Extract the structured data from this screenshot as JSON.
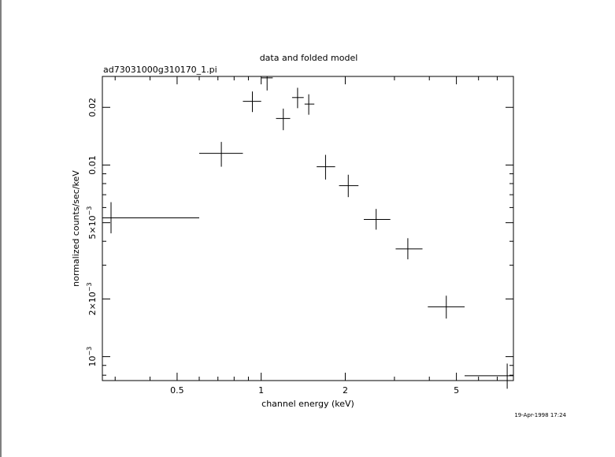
{
  "chart_data": {
    "type": "scatter",
    "title": "data and folded model",
    "subtitle": "ad73031000g310170_1.pi",
    "xlabel": "channel energy (keV)",
    "ylabel": "normalized counts/sec/keV",
    "x_scale": "log",
    "y_scale": "log",
    "xlim": [
      0.27,
      8.0
    ],
    "ylim": [
      0.00075,
      0.029
    ],
    "grid": false,
    "legend": "none",
    "timestamp": "19-Apr-1998 17:24",
    "x_ticks": [
      {
        "value": 0.5,
        "label": "0.5"
      },
      {
        "value": 1,
        "label": "1"
      },
      {
        "value": 2,
        "label": "2"
      },
      {
        "value": 5,
        "label": "5"
      }
    ],
    "y_ticks": [
      {
        "value": 0.001,
        "label_base": "10",
        "label_sup": "−3"
      },
      {
        "value": 0.002,
        "label_base": "2×10",
        "label_sup": "−3"
      },
      {
        "value": 0.005,
        "label_base": "5×10",
        "label_sup": "−3"
      },
      {
        "value": 0.01,
        "label_base": "0.01",
        "label_sup": ""
      },
      {
        "value": 0.02,
        "label_base": "0.02",
        "label_sup": ""
      }
    ],
    "series": [
      {
        "points": [
          {
            "x": 0.29,
            "xlo": 0.27,
            "xhi": 0.6,
            "y": 0.0053,
            "ylo": 0.0044,
            "yhi": 0.0064
          },
          {
            "x": 0.72,
            "xlo": 0.6,
            "xhi": 0.86,
            "y": 0.0115,
            "ylo": 0.0098,
            "yhi": 0.0132
          },
          {
            "x": 0.93,
            "xlo": 0.86,
            "xhi": 1.0,
            "y": 0.0215,
            "ylo": 0.0189,
            "yhi": 0.0242
          },
          {
            "x": 1.05,
            "xlo": 1.0,
            "xhi": 1.1,
            "y": 0.0285,
            "ylo": 0.0245,
            "yhi": 0.029
          },
          {
            "x": 1.2,
            "xlo": 1.13,
            "xhi": 1.27,
            "y": 0.0175,
            "ylo": 0.0152,
            "yhi": 0.0197
          },
          {
            "x": 1.35,
            "xlo": 1.29,
            "xhi": 1.42,
            "y": 0.0225,
            "ylo": 0.0198,
            "yhi": 0.0253
          },
          {
            "x": 1.48,
            "xlo": 1.43,
            "xhi": 1.55,
            "y": 0.0208,
            "ylo": 0.0183,
            "yhi": 0.0234
          },
          {
            "x": 1.7,
            "xlo": 1.58,
            "xhi": 1.84,
            "y": 0.0098,
            "ylo": 0.0084,
            "yhi": 0.0113
          },
          {
            "x": 2.05,
            "xlo": 1.9,
            "xhi": 2.23,
            "y": 0.0078,
            "ylo": 0.0068,
            "yhi": 0.0089
          },
          {
            "x": 2.58,
            "xlo": 2.33,
            "xhi": 2.9,
            "y": 0.0052,
            "ylo": 0.0046,
            "yhi": 0.0059
          },
          {
            "x": 3.35,
            "xlo": 3.03,
            "xhi": 3.78,
            "y": 0.00365,
            "ylo": 0.00322,
            "yhi": 0.00415
          },
          {
            "x": 4.6,
            "xlo": 3.95,
            "xhi": 5.35,
            "y": 0.00182,
            "ylo": 0.00158,
            "yhi": 0.00208
          },
          {
            "x": 7.6,
            "xlo": 5.35,
            "xhi": 8.0,
            "y": 0.000795,
            "ylo": 0.00068,
            "yhi": 0.00092
          }
        ]
      }
    ]
  }
}
